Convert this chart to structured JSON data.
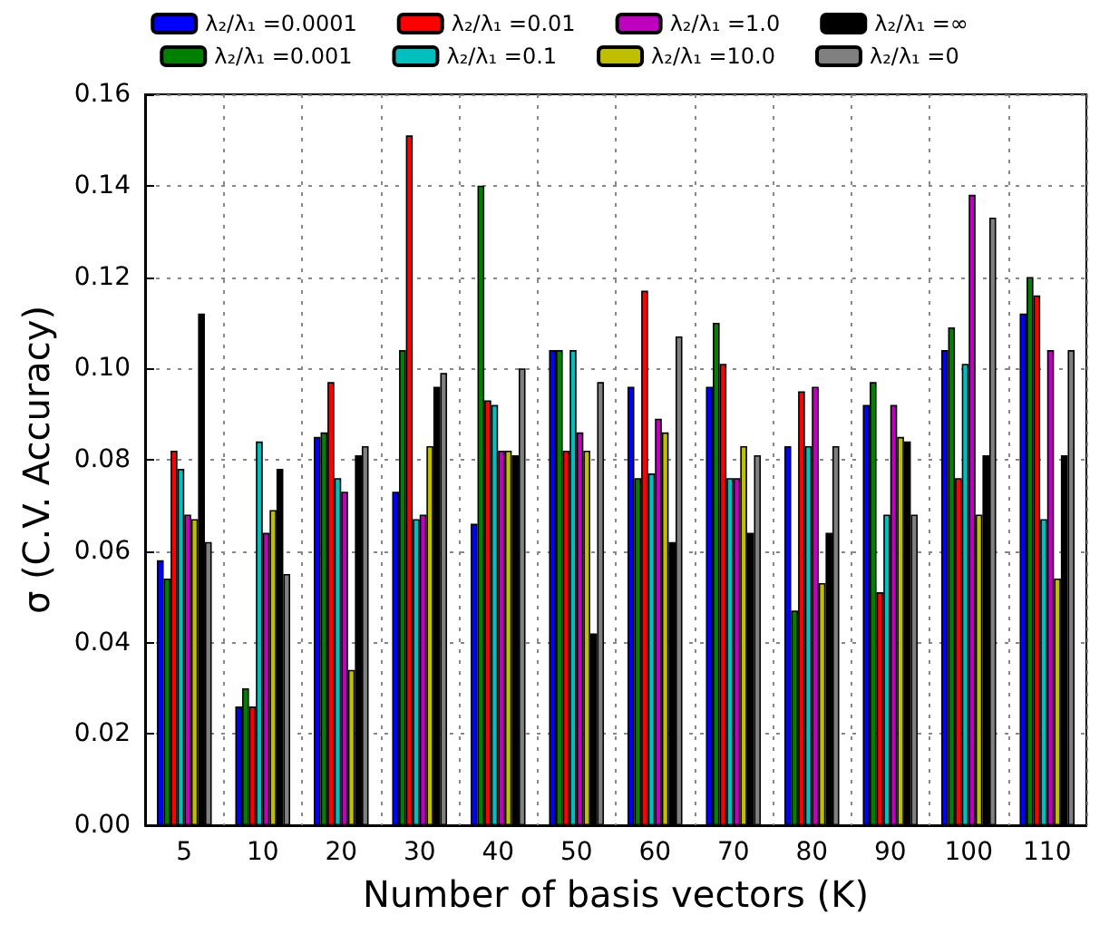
{
  "chart_data": {
    "type": "bar",
    "xlabel": "Number of basis vectors (K)",
    "ylabel": "σ (C.V. Accuracy)",
    "categories": [
      "5",
      "10",
      "20",
      "30",
      "40",
      "50",
      "60",
      "70",
      "80",
      "90",
      "100",
      "110"
    ],
    "series": [
      {
        "name": "λ₂/λ₁ =0.0001",
        "color": "#0000ff",
        "values": [
          0.058,
          0.026,
          0.085,
          0.073,
          0.066,
          0.104,
          0.096,
          0.096,
          0.083,
          0.092,
          0.104,
          0.112
        ]
      },
      {
        "name": "λ₂/λ₁ =0.001",
        "color": "#008000",
        "values": [
          0.054,
          0.03,
          0.086,
          0.104,
          0.14,
          0.104,
          0.076,
          0.11,
          0.047,
          0.097,
          0.109,
          0.12
        ]
      },
      {
        "name": "λ₂/λ₁ =0.01",
        "color": "#ff0000",
        "values": [
          0.082,
          0.026,
          0.097,
          0.151,
          0.093,
          0.082,
          0.117,
          0.101,
          0.095,
          0.051,
          0.076,
          0.116
        ]
      },
      {
        "name": "λ₂/λ₁ =0.1",
        "color": "#00bfbf",
        "values": [
          0.078,
          0.084,
          0.076,
          0.067,
          0.092,
          0.104,
          0.077,
          0.076,
          0.083,
          0.068,
          0.101,
          0.067
        ]
      },
      {
        "name": "λ₂/λ₁ =1.0",
        "color": "#bf00bf",
        "values": [
          0.068,
          0.064,
          0.073,
          0.068,
          0.082,
          0.086,
          0.089,
          0.076,
          0.096,
          0.092,
          0.138,
          0.104
        ]
      },
      {
        "name": "λ₂/λ₁ =10.0",
        "color": "#bfbf00",
        "values": [
          0.067,
          0.069,
          0.034,
          0.083,
          0.082,
          0.082,
          0.086,
          0.083,
          0.053,
          0.085,
          0.068,
          0.054
        ]
      },
      {
        "name": "λ₂/λ₁ =∞",
        "color": "#000000",
        "values": [
          0.112,
          0.078,
          0.081,
          0.096,
          0.081,
          0.042,
          0.062,
          0.064,
          0.064,
          0.084,
          0.081,
          0.081
        ]
      },
      {
        "name": "λ₂/λ₁ =0",
        "color": "#808080",
        "values": [
          0.062,
          0.055,
          0.083,
          0.099,
          0.1,
          0.097,
          0.107,
          0.081,
          0.083,
          0.068,
          0.133,
          0.104
        ]
      }
    ],
    "ylim": [
      0,
      0.16
    ],
    "yticks": [
      {
        "value": 0,
        "label": "0.00"
      },
      {
        "value": 0.02,
        "label": "0.02"
      },
      {
        "value": 0.04,
        "label": "0.04"
      },
      {
        "value": 0.06,
        "label": "0.06"
      },
      {
        "value": 0.08,
        "label": "0.08"
      },
      {
        "value": 0.1,
        "label": "0.10"
      },
      {
        "value": 0.12,
        "label": "0.12"
      },
      {
        "value": 0.14,
        "label": "0.14"
      },
      {
        "value": 0.16,
        "label": "0.16"
      }
    ],
    "grid": true,
    "legend": "top"
  }
}
